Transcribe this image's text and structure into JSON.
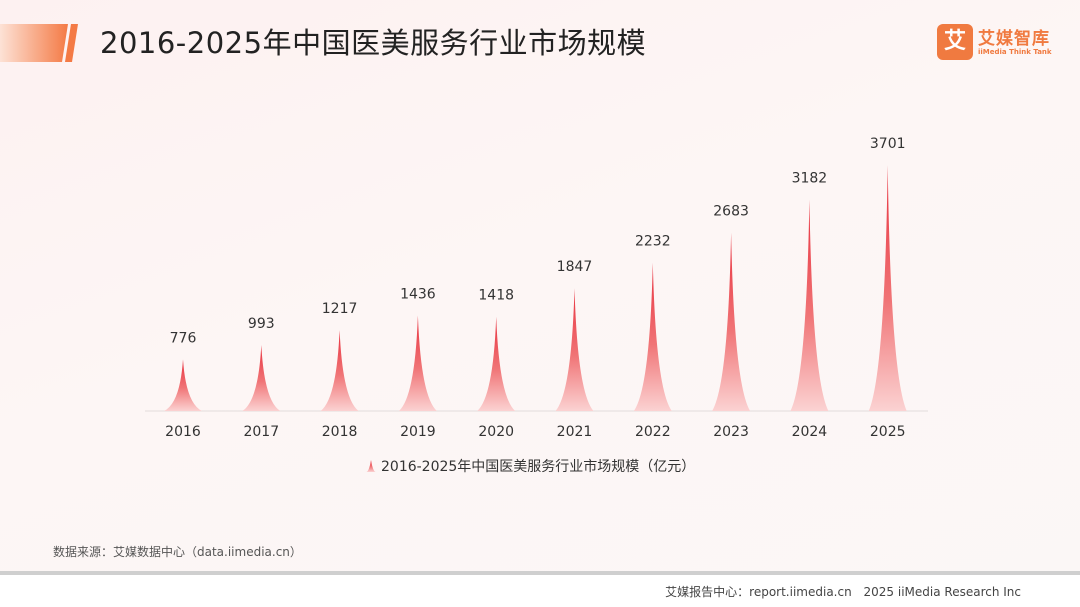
{
  "header": {
    "title": "2016-2025年中国医美服务行业市场规模",
    "accent_color": "#f47a45"
  },
  "logo": {
    "cn": "艾媒智库",
    "en": "iiMedia Think Tank",
    "mark": "艾",
    "color": "#f07a40"
  },
  "chart_data": {
    "type": "bar",
    "categories": [
      "2016",
      "2017",
      "2018",
      "2019",
      "2020",
      "2021",
      "2022",
      "2023",
      "2024",
      "2025"
    ],
    "series": [
      {
        "name": "2016-2025年中国医美服务行业市场规模（亿元）",
        "values": [
          776,
          993,
          1217,
          1436,
          1418,
          1847,
          2232,
          2683,
          3182,
          3701
        ],
        "color": "#e8474e"
      }
    ],
    "ylim": [
      0,
      3701
    ],
    "grid": false,
    "legend_position": "bottom-center",
    "data_labels": true
  },
  "source": "数据来源：艾媒数据中心（data.iimedia.cn）",
  "footer": {
    "report": "艾媒报告中心：report.iimedia.cn",
    "copyright": "2025 iiMedia Research Inc"
  }
}
